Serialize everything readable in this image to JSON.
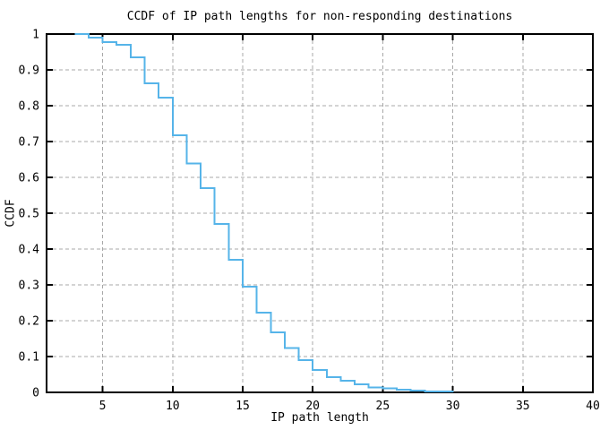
{
  "page": {
    "background": "#ffffff"
  },
  "chart_data": {
    "type": "line",
    "style": "steps-post",
    "title": "CCDF of IP path lengths for non-responding destinations",
    "xlabel": "IP path length",
    "ylabel": "CCDF",
    "xlim": [
      1,
      40
    ],
    "ylim": [
      0,
      1
    ],
    "xticks": [
      5,
      10,
      15,
      20,
      25,
      30,
      35,
      40
    ],
    "xtick_labels": [
      "5",
      "10",
      "15",
      "20",
      "25",
      "30",
      "35",
      "40"
    ],
    "yticks": [
      0,
      0.1,
      0.2,
      0.3,
      0.4,
      0.5,
      0.6,
      0.7,
      0.8,
      0.9,
      1
    ],
    "ytick_labels": [
      "0",
      "0.1",
      "0.2",
      "0.3",
      "0.4",
      "0.5",
      "0.6",
      "0.7",
      "0.8",
      "0.9",
      "1"
    ],
    "grid": true,
    "grid_style": "dashed",
    "legend": "none",
    "colors": {
      "line": "#56b4e9",
      "grid": "#a8a8a8",
      "axis": "#000000",
      "text": "#000000",
      "background": "#ffffff"
    },
    "series": [
      {
        "name": "CCDF",
        "x": [
          3,
          4,
          5,
          6,
          7,
          8,
          9,
          10,
          11,
          12,
          13,
          14,
          15,
          16,
          17,
          18,
          19,
          20,
          21,
          22,
          23,
          24,
          25,
          26,
          27,
          28,
          29,
          30
        ],
        "y": [
          1.0,
          0.99,
          0.978,
          0.97,
          0.935,
          0.862,
          0.822,
          0.718,
          0.639,
          0.57,
          0.47,
          0.37,
          0.295,
          0.222,
          0.168,
          0.124,
          0.09,
          0.062,
          0.043,
          0.032,
          0.022,
          0.014,
          0.011,
          0.008,
          0.005,
          0.003,
          0.002,
          0.0
        ]
      }
    ]
  }
}
